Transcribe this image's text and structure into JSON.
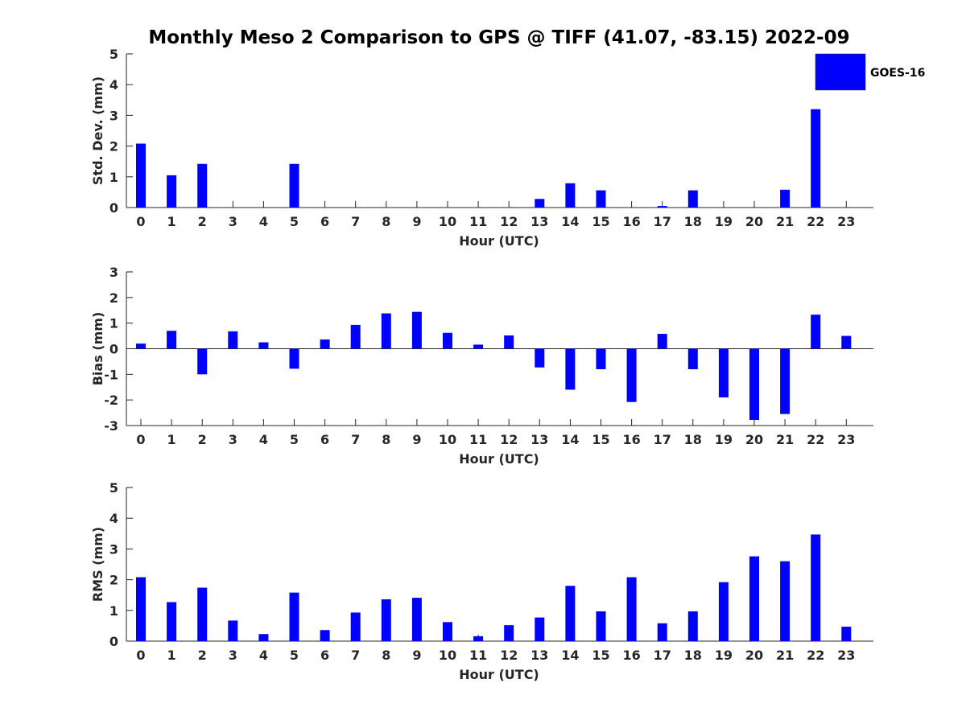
{
  "chart_data": {
    "type": "bar",
    "title": "Monthly Meso 2 Comparison to GPS @ TIFF (41.07, -83.15) 2022-09",
    "categories": [
      "0",
      "1",
      "2",
      "3",
      "4",
      "5",
      "6",
      "7",
      "8",
      "9",
      "10",
      "11",
      "12",
      "13",
      "14",
      "15",
      "16",
      "17",
      "18",
      "19",
      "20",
      "21",
      "22",
      "23"
    ],
    "legend": {
      "position": "top-right",
      "entries": [
        {
          "name": "GOES-16",
          "color": "#0000ff"
        }
      ]
    },
    "bar_color": "#0000ff",
    "panels": [
      {
        "id": "std",
        "ylabel": "Std. Dev. (mm)",
        "xlabel": "Hour (UTC)",
        "ylim": [
          0,
          5
        ],
        "yticks": [
          0,
          1,
          2,
          3,
          4,
          5
        ],
        "values": [
          2.08,
          1.05,
          1.42,
          0,
          0,
          1.42,
          0,
          0,
          0,
          0,
          0,
          0,
          0,
          0.28,
          0.79,
          0.56,
          0,
          0.05,
          0.56,
          0,
          0,
          0.58,
          3.2,
          0
        ]
      },
      {
        "id": "bias",
        "ylabel": "Bias (mm)",
        "xlabel": "Hour (UTC)",
        "ylim": [
          -3,
          3
        ],
        "yticks": [
          -3,
          -2,
          -1,
          0,
          1,
          2,
          3
        ],
        "zero_line": true,
        "values": [
          0.2,
          0.7,
          -1.0,
          0.68,
          0.25,
          -0.78,
          0.36,
          0.93,
          1.38,
          1.44,
          0.62,
          0.16,
          0.52,
          -0.73,
          -1.6,
          -0.8,
          -2.08,
          0.58,
          -0.8,
          -1.9,
          -2.78,
          -2.55,
          1.33,
          0.5
        ]
      },
      {
        "id": "rms",
        "ylabel": "RMS (mm)",
        "xlabel": "Hour (UTC)",
        "ylim": [
          0,
          5
        ],
        "yticks": [
          0,
          1,
          2,
          3,
          4,
          5
        ],
        "values": [
          2.08,
          1.27,
          1.74,
          0.67,
          0.23,
          1.58,
          0.36,
          0.93,
          1.36,
          1.41,
          0.62,
          0.16,
          0.52,
          0.77,
          1.8,
          0.97,
          2.08,
          0.58,
          0.97,
          1.92,
          2.76,
          2.6,
          3.47,
          0.47
        ]
      }
    ]
  }
}
